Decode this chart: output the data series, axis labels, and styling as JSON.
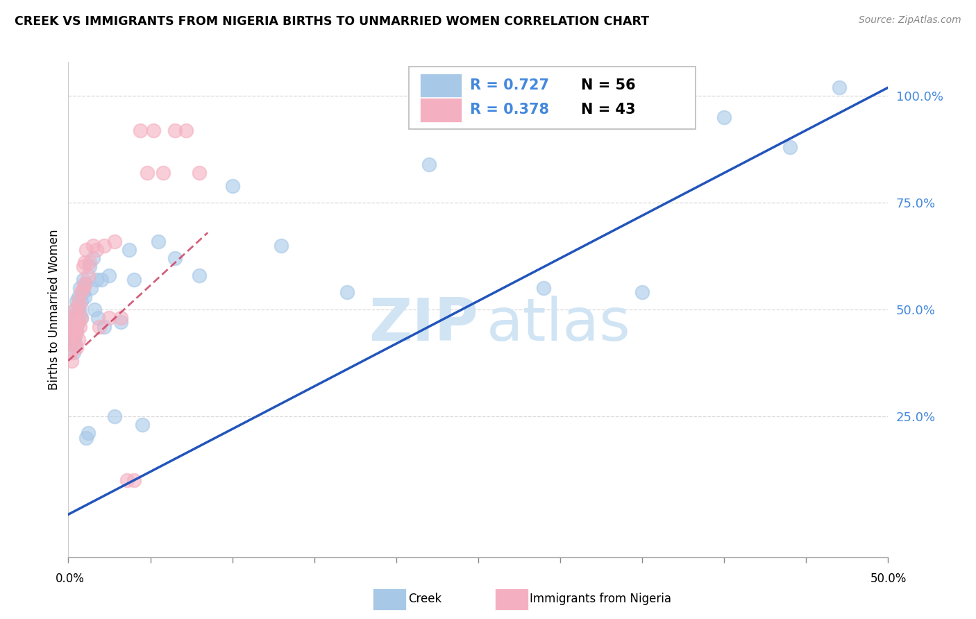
{
  "title": "CREEK VS IMMIGRANTS FROM NIGERIA BIRTHS TO UNMARRIED WOMEN CORRELATION CHART",
  "source": "Source: ZipAtlas.com",
  "ylabel": "Births to Unmarried Women",
  "ytick_values": [
    0.25,
    0.5,
    0.75,
    1.0
  ],
  "xlim": [
    0.0,
    0.5
  ],
  "ylim": [
    -0.08,
    1.08
  ],
  "creek_color": "#a8c8e8",
  "nigeria_color": "#f4b0c0",
  "creek_line_color": "#2255bb",
  "nigeria_line_color": "#cc4466",
  "watermark_color": "#d0e4f4",
  "creek_scatter_x": [
    0.001,
    0.001,
    0.002,
    0.002,
    0.002,
    0.003,
    0.003,
    0.003,
    0.003,
    0.004,
    0.004,
    0.004,
    0.004,
    0.005,
    0.005,
    0.005,
    0.005,
    0.006,
    0.006,
    0.006,
    0.007,
    0.007,
    0.008,
    0.008,
    0.009,
    0.009,
    0.01,
    0.01,
    0.011,
    0.012,
    0.013,
    0.014,
    0.015,
    0.016,
    0.017,
    0.018,
    0.02,
    0.022,
    0.025,
    0.028,
    0.032,
    0.037,
    0.04,
    0.045,
    0.055,
    0.065,
    0.08,
    0.1,
    0.13,
    0.17,
    0.22,
    0.29,
    0.35,
    0.4,
    0.44,
    0.47
  ],
  "creek_scatter_y": [
    0.42,
    0.45,
    0.43,
    0.46,
    0.44,
    0.4,
    0.43,
    0.48,
    0.46,
    0.44,
    0.47,
    0.5,
    0.42,
    0.45,
    0.48,
    0.52,
    0.46,
    0.5,
    0.47,
    0.53,
    0.49,
    0.55,
    0.52,
    0.48,
    0.54,
    0.57,
    0.53,
    0.56,
    0.2,
    0.21,
    0.6,
    0.55,
    0.62,
    0.5,
    0.57,
    0.48,
    0.57,
    0.46,
    0.58,
    0.25,
    0.47,
    0.64,
    0.57,
    0.23,
    0.66,
    0.62,
    0.58,
    0.79,
    0.65,
    0.54,
    0.84,
    0.55,
    0.54,
    0.95,
    0.88,
    1.02
  ],
  "nigeria_scatter_x": [
    0.001,
    0.001,
    0.002,
    0.002,
    0.003,
    0.003,
    0.003,
    0.004,
    0.004,
    0.004,
    0.005,
    0.005,
    0.005,
    0.006,
    0.006,
    0.006,
    0.007,
    0.007,
    0.008,
    0.008,
    0.009,
    0.009,
    0.01,
    0.01,
    0.011,
    0.012,
    0.013,
    0.015,
    0.017,
    0.019,
    0.022,
    0.025,
    0.028,
    0.032,
    0.036,
    0.04,
    0.044,
    0.048,
    0.052,
    0.058,
    0.065,
    0.072,
    0.08
  ],
  "nigeria_scatter_y": [
    0.4,
    0.43,
    0.38,
    0.46,
    0.42,
    0.45,
    0.48,
    0.44,
    0.5,
    0.47,
    0.41,
    0.45,
    0.49,
    0.43,
    0.47,
    0.52,
    0.46,
    0.51,
    0.48,
    0.54,
    0.55,
    0.6,
    0.56,
    0.61,
    0.64,
    0.58,
    0.61,
    0.65,
    0.64,
    0.46,
    0.65,
    0.48,
    0.66,
    0.48,
    0.1,
    0.1,
    0.92,
    0.82,
    0.92,
    0.82,
    0.92,
    0.92,
    0.82
  ],
  "creek_line_x": [
    0.0,
    0.5
  ],
  "creek_line_y": [
    0.02,
    1.02
  ],
  "nigeria_line_x": [
    0.0,
    0.085
  ],
  "nigeria_line_y": [
    0.38,
    0.68
  ],
  "grid_color": "#d8d8d8",
  "tick_color": "#888888"
}
